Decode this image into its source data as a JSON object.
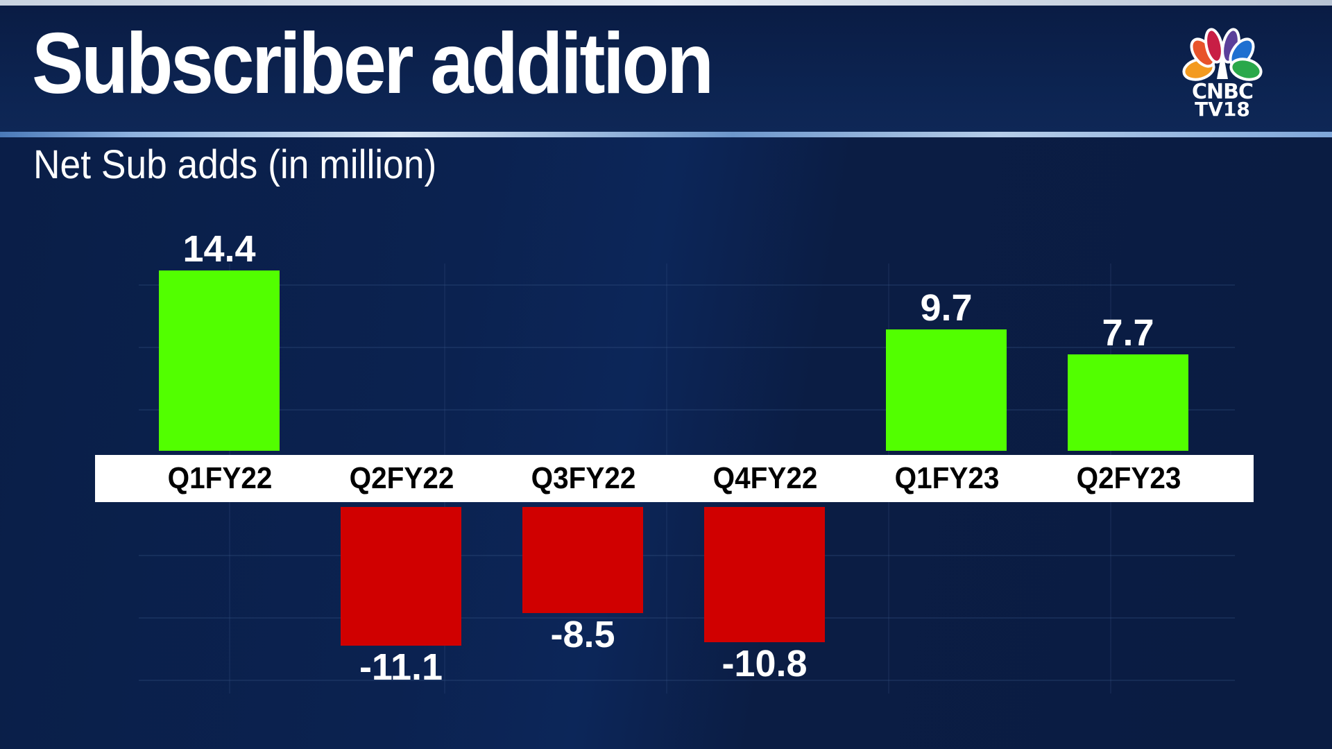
{
  "header": {
    "title": "Subscriber addition",
    "subtitle": "Net Sub adds (in million)",
    "logo": {
      "line1": "CNBC",
      "line2": "TV18",
      "icon": "peacock-logo-icon"
    }
  },
  "colors": {
    "positive": "#52ff00",
    "negative": "#d00000",
    "background": "#0b2250",
    "band": "#ffffff"
  },
  "chart_data": {
    "type": "bar",
    "title": "Subscriber addition",
    "subtitle": "Net Sub adds (in million)",
    "xlabel": "",
    "ylabel": "Net Sub adds (in million)",
    "categories": [
      "Q1FY22",
      "Q2FY22",
      "Q3FY22",
      "Q4FY22",
      "Q1FY23",
      "Q2FY23"
    ],
    "values": [
      14.4,
      -11.1,
      -8.5,
      -10.8,
      9.7,
      7.7
    ],
    "value_labels": [
      "14.4",
      "-11.1",
      "-8.5",
      "-10.8",
      "9.7",
      "7.7"
    ],
    "ylim": [
      -12,
      15
    ],
    "grid": true,
    "legend": "none",
    "bar_colors": [
      "#52ff00",
      "#d00000",
      "#d00000",
      "#d00000",
      "#52ff00",
      "#52ff00"
    ]
  }
}
